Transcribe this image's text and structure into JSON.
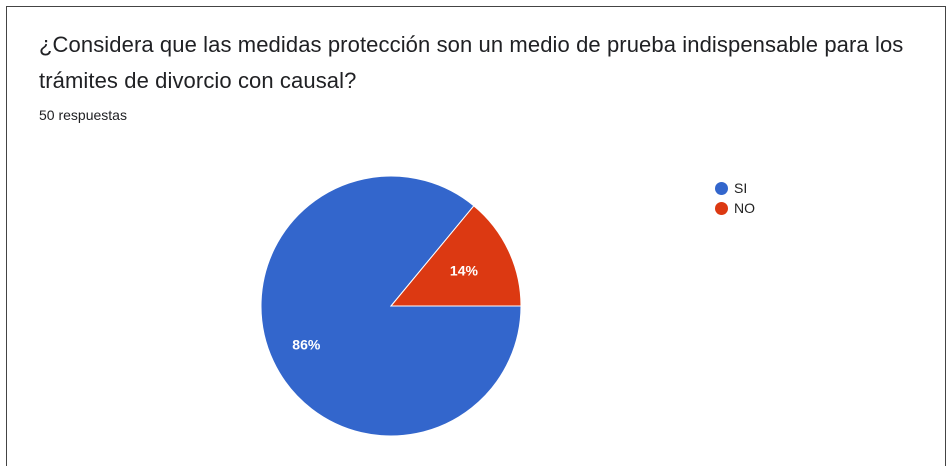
{
  "question": {
    "title": "¿Considera que las medidas protección son un medio de prueba indispensable para los trámites de divorcio con causal?",
    "responses": "50 respuestas"
  },
  "colors": {
    "si": "#3366cc",
    "no": "#dc3912"
  },
  "chart_data": {
    "type": "pie",
    "categories": [
      "SI",
      "NO"
    ],
    "values": [
      86,
      14
    ],
    "labels": [
      "86%",
      "14%"
    ],
    "colors": [
      "#3366cc",
      "#dc3912"
    ],
    "legend": "right",
    "total_responses": 50
  }
}
